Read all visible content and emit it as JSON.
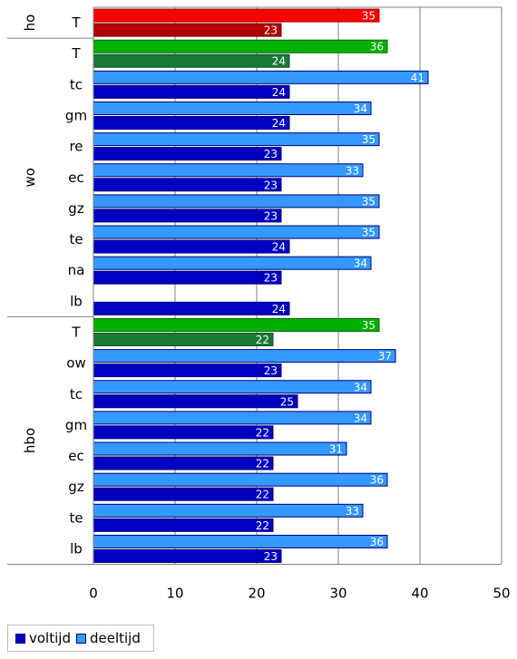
{
  "chart_data": {
    "type": "bar",
    "orientation": "horizontal",
    "xlim": [
      0,
      50
    ],
    "xticks": [
      0,
      10,
      20,
      30,
      40,
      50
    ],
    "grid": true,
    "legend_position": "bottom-left",
    "series_names": [
      "voltijd",
      "deeltijd"
    ],
    "groups": [
      {
        "name": "ho",
        "rows": [
          {
            "label": "T",
            "deeltijd": 35,
            "voltijd": 23,
            "total": true
          }
        ]
      },
      {
        "name": "wo",
        "rows": [
          {
            "label": "T",
            "deeltijd": 36,
            "voltijd": 24,
            "total": true
          },
          {
            "label": "tc",
            "deeltijd": 41,
            "voltijd": 24
          },
          {
            "label": "gm",
            "deeltijd": 34,
            "voltijd": 24
          },
          {
            "label": "re",
            "deeltijd": 35,
            "voltijd": 23
          },
          {
            "label": "ec",
            "deeltijd": 33,
            "voltijd": 23
          },
          {
            "label": "gz",
            "deeltijd": 35,
            "voltijd": 23
          },
          {
            "label": "te",
            "deeltijd": 35,
            "voltijd": 24
          },
          {
            "label": "na",
            "deeltijd": 34,
            "voltijd": 23
          },
          {
            "label": "lb",
            "deeltijd": null,
            "voltijd": 24
          }
        ]
      },
      {
        "name": "hbo",
        "rows": [
          {
            "label": "T",
            "deeltijd": 35,
            "voltijd": 22,
            "total": true
          },
          {
            "label": "ow",
            "deeltijd": 37,
            "voltijd": 23
          },
          {
            "label": "tc",
            "deeltijd": 34,
            "voltijd": 25
          },
          {
            "label": "gm",
            "deeltijd": 34,
            "voltijd": 22
          },
          {
            "label": "ec",
            "deeltijd": 31,
            "voltijd": 22
          },
          {
            "label": "gz",
            "deeltijd": 36,
            "voltijd": 22
          },
          {
            "label": "te",
            "deeltijd": 33,
            "voltijd": 22
          },
          {
            "label": "lb",
            "deeltijd": 36,
            "voltijd": 23
          }
        ]
      }
    ]
  },
  "colors": {
    "voltijd": "#0000c0",
    "deeltijd": "#3399ff",
    "ho_deeltijd": "#ff0000",
    "ho_voltijd": "#b30000",
    "total_deeltijd": "#00b000",
    "total_voltijd": "#1a7a33",
    "grid": "#808080"
  },
  "legend": {
    "voltijd": "voltijd",
    "deeltijd": "deeltijd"
  }
}
